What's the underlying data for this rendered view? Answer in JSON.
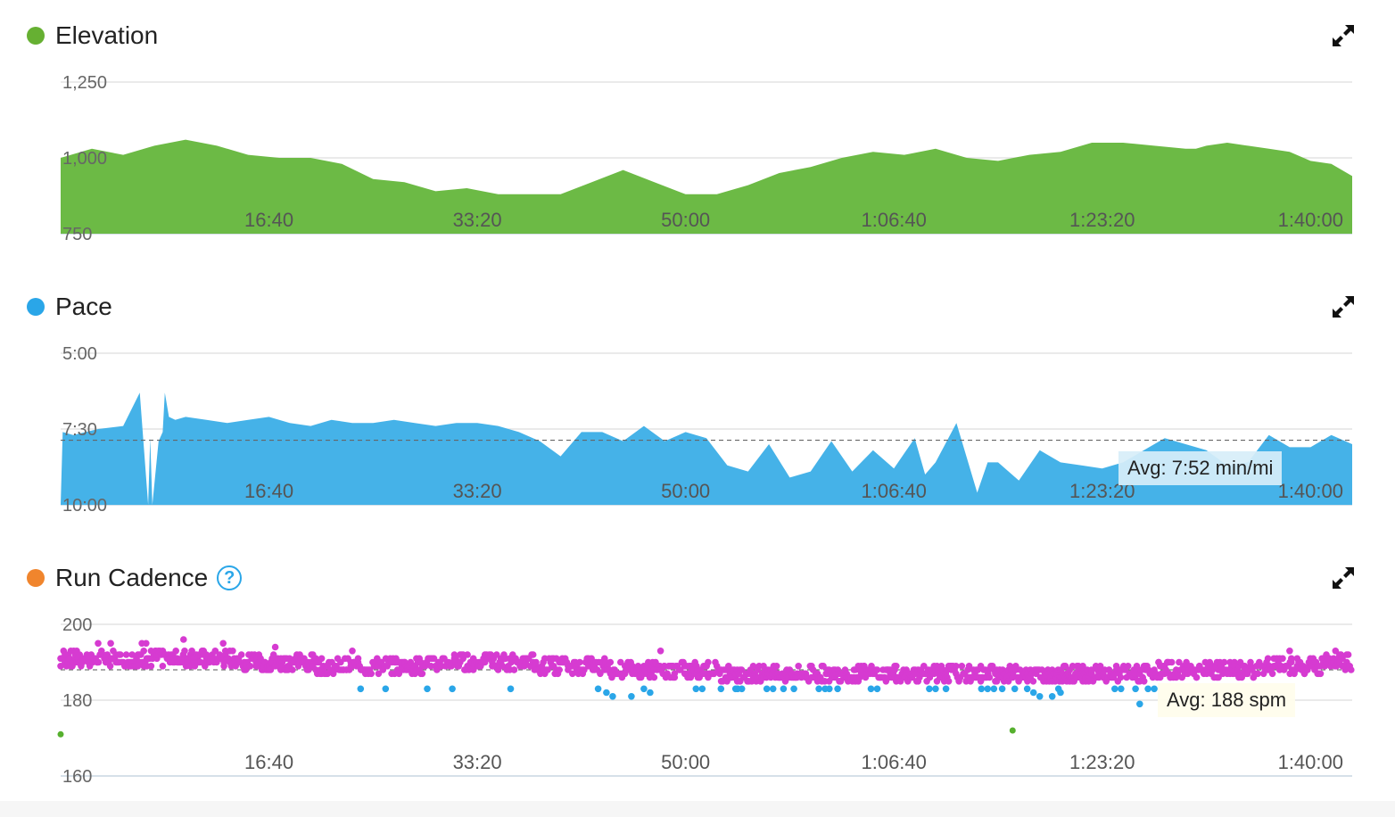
{
  "panels": {
    "elevation": {
      "title": "Elevation",
      "dot_color": "#66b032",
      "expand_icon": "expand-arrows-icon"
    },
    "pace": {
      "title": "Pace",
      "dot_color": "#2aa6e8",
      "expand_icon": "expand-arrows-icon",
      "avg_label": "Avg: 7:52 min/mi"
    },
    "cadence": {
      "title": "Run Cadence",
      "dot_color": "#f0852d",
      "help_icon": "question-circle-icon",
      "help_text": "?",
      "expand_icon": "expand-arrows-icon",
      "avg_label": "Avg: 188 spm"
    }
  },
  "chart_data": [
    {
      "type": "area",
      "title": "Elevation",
      "color": "#6cba45",
      "ylim": [
        750,
        1250
      ],
      "y_ticks": [
        "1,250",
        "1,000",
        "750"
      ],
      "y_tick_values": [
        1250,
        1000,
        750
      ],
      "xlim": [
        0,
        6200
      ],
      "x_ticks": [
        "16:40",
        "33:20",
        "50:00",
        "1:06:40",
        "1:23:20",
        "1:40:00"
      ],
      "x_tick_values": [
        1000,
        2000,
        3000,
        4000,
        5000,
        6000
      ],
      "x": [
        0,
        150,
        300,
        450,
        600,
        750,
        900,
        1050,
        1200,
        1350,
        1500,
        1650,
        1800,
        1950,
        2100,
        2250,
        2400,
        2550,
        2700,
        2850,
        3000,
        3150,
        3300,
        3450,
        3600,
        3750,
        3900,
        4050,
        4200,
        4350,
        4500,
        4650,
        4800,
        4950,
        5100,
        5250,
        5400,
        5450,
        5500,
        5600,
        5700,
        5800,
        5900,
        6000,
        6100,
        6200
      ],
      "y": [
        1000,
        1030,
        1010,
        1040,
        1060,
        1040,
        1010,
        1000,
        1000,
        980,
        930,
        920,
        890,
        900,
        880,
        880,
        880,
        920,
        960,
        920,
        880,
        880,
        910,
        950,
        970,
        1000,
        1020,
        1010,
        1030,
        1000,
        990,
        1010,
        1020,
        1050,
        1050,
        1040,
        1030,
        1030,
        1040,
        1050,
        1040,
        1030,
        1020,
        990,
        980,
        940
      ]
    },
    {
      "type": "area",
      "title": "Pace",
      "color": "#45b2e8",
      "ylim": [
        10,
        5
      ],
      "y_ticks": [
        "5:00",
        "7:30",
        "10:00"
      ],
      "y_tick_values": [
        5,
        7.5,
        10
      ],
      "xlim": [
        0,
        6200
      ],
      "x_ticks": [
        "16:40",
        "33:20",
        "50:00",
        "1:06:40",
        "1:23:20",
        "1:40:00"
      ],
      "x_tick_values": [
        1000,
        2000,
        3000,
        4000,
        5000,
        6000
      ],
      "x": [
        0,
        10,
        60,
        180,
        300,
        380,
        420,
        430,
        440,
        470,
        490,
        500,
        520,
        550,
        600,
        700,
        800,
        900,
        1000,
        1100,
        1200,
        1300,
        1400,
        1500,
        1600,
        1700,
        1800,
        1900,
        2000,
        2100,
        2200,
        2300,
        2400,
        2500,
        2600,
        2700,
        2800,
        2900,
        3000,
        3100,
        3200,
        3300,
        3400,
        3500,
        3600,
        3700,
        3800,
        3900,
        4000,
        4100,
        4150,
        4200,
        4300,
        4400,
        4450,
        4500,
        4600,
        4700,
        4800,
        4900,
        5000,
        5100,
        5200,
        5300,
        5400,
        5500,
        5600,
        5700,
        5800,
        5900,
        6000,
        6100,
        6200
      ],
      "y": [
        10,
        7.6,
        7.7,
        7.5,
        7.4,
        6.3,
        10,
        7.8,
        10,
        7.9,
        7.6,
        6.3,
        7.1,
        7.2,
        7.1,
        7.2,
        7.3,
        7.2,
        7.1,
        7.3,
        7.4,
        7.2,
        7.3,
        7.3,
        7.2,
        7.3,
        7.4,
        7.3,
        7.3,
        7.4,
        7.6,
        7.9,
        8.4,
        7.6,
        7.6,
        7.9,
        7.4,
        7.9,
        7.6,
        7.8,
        8.7,
        8.9,
        8.0,
        9.1,
        8.9,
        7.9,
        8.9,
        8.2,
        8.8,
        7.8,
        9.0,
        8.6,
        7.3,
        9.6,
        8.6,
        8.6,
        9.2,
        8.2,
        8.6,
        8.7,
        8.8,
        8.6,
        8.2,
        7.8,
        8.0,
        8.2,
        8.7,
        8.6,
        7.7,
        8.1,
        8.1,
        7.7,
        8.0
      ]
    },
    {
      "type": "scatter",
      "title": "Run Cadence",
      "ylim": [
        160,
        200
      ],
      "y_ticks": [
        "200",
        "180",
        "160"
      ],
      "y_tick_values": [
        200,
        180,
        160
      ],
      "xlim": [
        0,
        6200
      ],
      "x_ticks": [
        "16:40",
        "33:20",
        "50:00",
        "1:06:40",
        "1:23:20",
        "1:40:00"
      ],
      "x_tick_values": [
        1000,
        2000,
        3000,
        4000,
        5000,
        6000
      ],
      "series": [
        {
          "color": "#d63bd1",
          "baseline": [
            [
              0,
              191
            ],
            [
              700,
              191
            ],
            [
              1400,
              189
            ],
            [
              2100,
              190
            ],
            [
              2800,
              188
            ],
            [
              3500,
              187
            ],
            [
              4200,
              187
            ],
            [
              4900,
              187
            ],
            [
              5600,
              188
            ],
            [
              6200,
              190
            ]
          ]
        },
        {
          "color": "#2aa6e8",
          "points": [
            [
              1440,
              183
            ],
            [
              1560,
              183
            ],
            [
              1760,
              183
            ],
            [
              1880,
              183
            ],
            [
              2160,
              183
            ],
            [
              2580,
              183
            ],
            [
              2620,
              182
            ],
            [
              2650,
              181
            ],
            [
              2740,
              181
            ],
            [
              2800,
              183
            ],
            [
              2830,
              182
            ],
            [
              3050,
              183
            ],
            [
              3080,
              183
            ],
            [
              3170,
              183
            ],
            [
              3240,
              183
            ],
            [
              3250,
              183
            ],
            [
              3270,
              183
            ],
            [
              3390,
              183
            ],
            [
              3420,
              183
            ],
            [
              3470,
              183
            ],
            [
              3520,
              183
            ],
            [
              3640,
              183
            ],
            [
              3670,
              183
            ],
            [
              3690,
              183
            ],
            [
              3730,
              183
            ],
            [
              3890,
              183
            ],
            [
              3920,
              183
            ],
            [
              4170,
              183
            ],
            [
              4200,
              183
            ],
            [
              4250,
              183
            ],
            [
              4420,
              183
            ],
            [
              4450,
              183
            ],
            [
              4480,
              183
            ],
            [
              4520,
              183
            ],
            [
              4580,
              183
            ],
            [
              4640,
              183
            ],
            [
              4670,
              182
            ],
            [
              4700,
              181
            ],
            [
              4760,
              181
            ],
            [
              4790,
              183
            ],
            [
              4800,
              182
            ],
            [
              5060,
              183
            ],
            [
              5090,
              183
            ],
            [
              5160,
              183
            ],
            [
              5220,
              183
            ],
            [
              5250,
              183
            ],
            [
              5180,
              179
            ]
          ]
        },
        {
          "color": "#56b02e",
          "points": [
            [
              0,
              171
            ],
            [
              4570,
              172
            ]
          ]
        }
      ]
    }
  ]
}
